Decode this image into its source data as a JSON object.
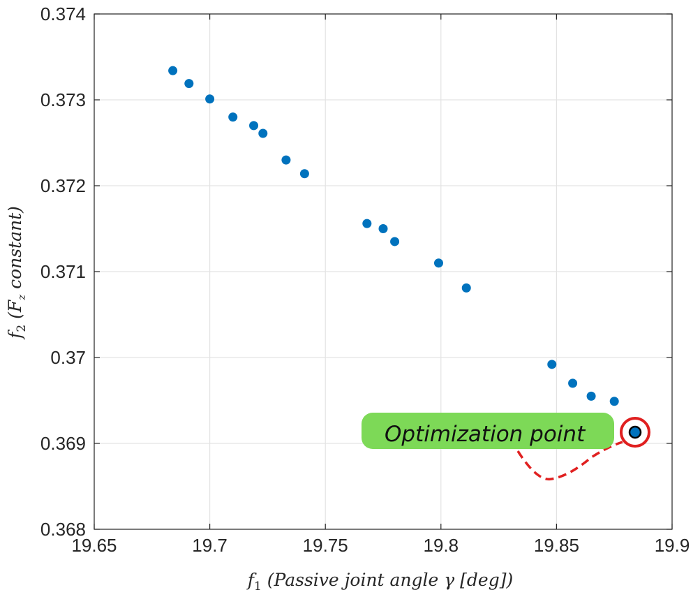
{
  "chart_data": {
    "type": "scatter",
    "title": "",
    "xlabel": "f1 (Passive joint angle γ [deg])",
    "ylabel": "f2 (Fz constant)",
    "xlim": [
      19.65,
      19.9
    ],
    "ylim": [
      0.368,
      0.374
    ],
    "xticks": [
      19.65,
      19.7,
      19.75,
      19.8,
      19.85,
      19.9
    ],
    "xtick_labels": [
      "19.65",
      "19.7",
      "19.75",
      "19.8",
      "19.85",
      "19.9"
    ],
    "yticks": [
      0.368,
      0.369,
      0.37,
      0.371,
      0.372,
      0.373,
      0.374
    ],
    "ytick_labels": [
      "0.368",
      "0.369",
      "0.37",
      "0.371",
      "0.372",
      "0.373",
      "0.374"
    ],
    "grid": true,
    "series": [
      {
        "color": "#0072BD",
        "x": [
          19.684,
          19.691,
          19.7,
          19.71,
          19.719,
          19.723,
          19.733,
          19.741,
          19.768,
          19.775,
          19.78,
          19.799,
          19.811,
          19.848,
          19.857,
          19.865,
          19.875,
          19.884
        ],
        "y": [
          0.37334,
          0.37319,
          0.37301,
          0.3728,
          0.3727,
          0.37261,
          0.3723,
          0.37214,
          0.37156,
          0.3715,
          0.37135,
          0.3711,
          0.37081,
          0.36992,
          0.3697,
          0.36955,
          0.36949,
          0.36913
        ]
      }
    ],
    "highlight": {
      "x": 19.884,
      "y": 0.36913,
      "ring_color": "#E02020",
      "fill_color": "#0072BD"
    },
    "annotation": {
      "text": "Optimization point",
      "box_color": "#7DD957",
      "leader_color": "#E02020"
    }
  }
}
